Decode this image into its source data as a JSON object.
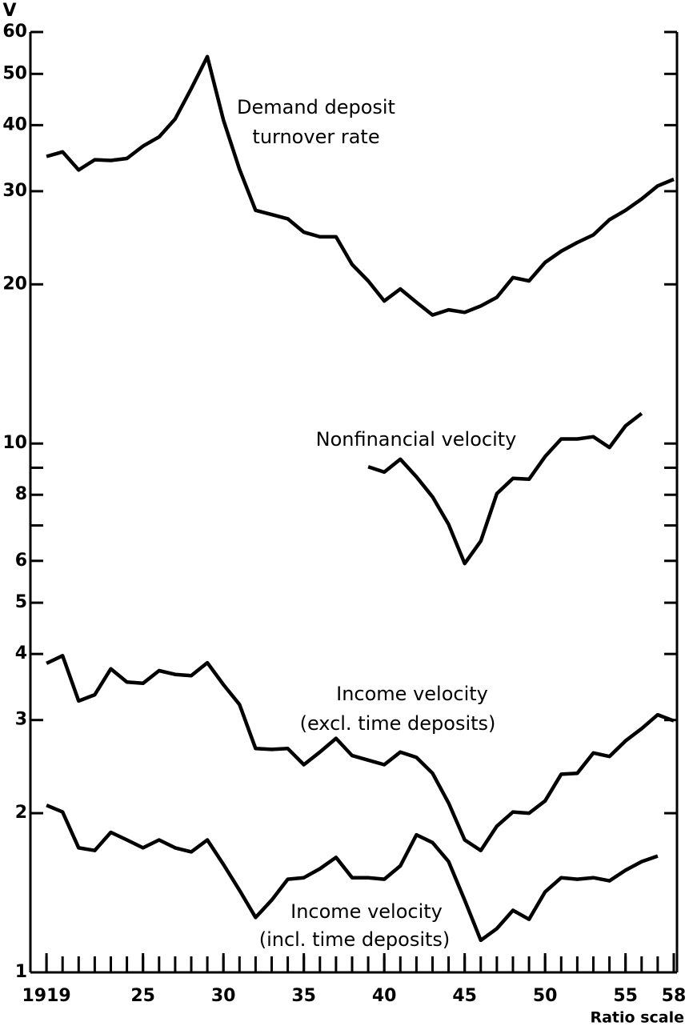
{
  "chart_data": {
    "type": "line",
    "y_label": "V",
    "x_note": "Ratio scale",
    "log_y": true,
    "color": "#000000",
    "xlim": [
      1918,
      1958.2
    ],
    "ylim": [
      1,
      60
    ],
    "xticks": [
      {
        "value": 1919,
        "label": "1919"
      },
      {
        "value": 1925,
        "label": "25"
      },
      {
        "value": 1930,
        "label": "30"
      },
      {
        "value": 1935,
        "label": "35"
      },
      {
        "value": 1940,
        "label": "40"
      },
      {
        "value": 1945,
        "label": "45"
      },
      {
        "value": 1950,
        "label": "50"
      },
      {
        "value": 1955,
        "label": "55"
      },
      {
        "value": 1958,
        "label": "58"
      }
    ],
    "x_minor_ticks": [
      1919,
      1920,
      1921,
      1922,
      1923,
      1924,
      1925,
      1926,
      1927,
      1928,
      1929,
      1930,
      1931,
      1932,
      1933,
      1934,
      1935,
      1936,
      1937,
      1938,
      1939,
      1940,
      1941,
      1942,
      1943,
      1944,
      1945,
      1946,
      1947,
      1948,
      1949,
      1950,
      1951,
      1952,
      1953,
      1954,
      1955,
      1956,
      1957,
      1958
    ],
    "yticks": [
      1,
      2,
      3,
      4,
      5,
      6,
      8,
      10,
      20,
      30,
      40,
      50,
      60
    ],
    "y_minor_ticks": [
      7,
      9
    ],
    "annotations": [
      "Demand deposit",
      "turnover rate",
      "Nonfinancial velocity",
      "Income velocity",
      "(excl. time deposits)",
      "Income velocity",
      "(incl. time deposits)"
    ],
    "series": [
      {
        "x": [
          1919,
          1920,
          1921,
          1922,
          1923,
          1924,
          1925,
          1926,
          1927,
          1928,
          1929,
          1930,
          1931,
          1932,
          1933,
          1934,
          1935,
          1936,
          1937,
          1938,
          1939,
          1940,
          1941,
          1942,
          1943,
          1944,
          1945,
          1946,
          1947,
          1948,
          1949,
          1950,
          1951,
          1952,
          1953,
          1954,
          1955,
          1956,
          1957,
          1958
        ],
        "values": [
          34.9,
          35.6,
          32.9,
          34.4,
          34.3,
          34.6,
          36.5,
          38.0,
          41.1,
          46.9,
          53.9,
          40.9,
          33.0,
          27.6,
          27.1,
          26.6,
          25.1,
          24.6,
          24.6,
          21.8,
          20.3,
          18.6,
          19.6,
          18.5,
          17.5,
          17.9,
          17.7,
          18.2,
          18.9,
          20.6,
          20.3,
          22.0,
          23.1,
          24.0,
          24.8,
          26.5,
          27.6,
          29.0,
          30.7,
          31.6
        ]
      },
      {
        "x": [
          1939,
          1940,
          1941,
          1942,
          1943,
          1944,
          1945,
          1946,
          1947,
          1948,
          1949,
          1950,
          1951,
          1952,
          1953,
          1954,
          1955,
          1956
        ],
        "values": [
          9.04,
          8.83,
          9.34,
          8.65,
          7.93,
          7.03,
          5.93,
          6.54,
          8.04,
          8.59,
          8.56,
          9.45,
          10.2,
          10.2,
          10.3,
          9.83,
          10.8,
          11.4
        ]
      },
      {
        "x": [
          1919,
          1920,
          1921,
          1922,
          1923,
          1924,
          1925,
          1926,
          1927,
          1928,
          1929,
          1930,
          1931,
          1932,
          1933,
          1934,
          1935,
          1936,
          1937,
          1938,
          1939,
          1940,
          1941,
          1942,
          1943,
          1944,
          1945,
          1946,
          1947,
          1948,
          1949,
          1950,
          1951,
          1952,
          1953,
          1954,
          1955,
          1956,
          1957,
          1958
        ],
        "values": [
          3.84,
          3.97,
          3.26,
          3.35,
          3.75,
          3.54,
          3.52,
          3.72,
          3.66,
          3.64,
          3.85,
          3.5,
          3.21,
          2.65,
          2.64,
          2.65,
          2.47,
          2.61,
          2.77,
          2.57,
          2.52,
          2.47,
          2.61,
          2.55,
          2.38,
          2.09,
          1.78,
          1.7,
          1.89,
          2.01,
          2.0,
          2.11,
          2.37,
          2.38,
          2.6,
          2.56,
          2.74,
          2.89,
          3.07,
          2.99
        ]
      },
      {
        "x": [
          1919,
          1920,
          1921,
          1922,
          1923,
          1924,
          1925,
          1926,
          1927,
          1928,
          1929,
          1930,
          1931,
          1932,
          1933,
          1934,
          1935,
          1936,
          1937,
          1938,
          1939,
          1940,
          1941,
          1942,
          1943,
          1944,
          1945,
          1946,
          1947,
          1948,
          1949,
          1950,
          1951,
          1952,
          1953,
          1954,
          1955,
          1956,
          1957
        ],
        "values": [
          2.07,
          2.01,
          1.72,
          1.7,
          1.84,
          1.78,
          1.72,
          1.78,
          1.72,
          1.69,
          1.78,
          1.6,
          1.43,
          1.27,
          1.37,
          1.5,
          1.51,
          1.57,
          1.65,
          1.51,
          1.51,
          1.5,
          1.59,
          1.82,
          1.76,
          1.62,
          1.37,
          1.15,
          1.21,
          1.31,
          1.26,
          1.42,
          1.51,
          1.5,
          1.51,
          1.49,
          1.56,
          1.62,
          1.66
        ]
      }
    ]
  }
}
